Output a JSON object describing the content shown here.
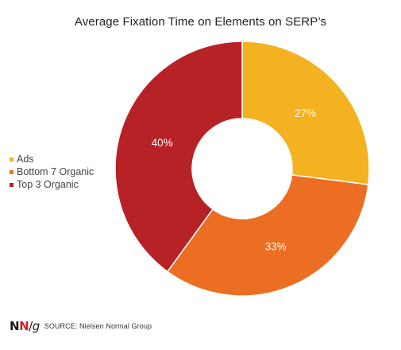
{
  "chart_data": {
    "type": "pie",
    "title": "Average Fixation Time on Elements on SERP’s",
    "categories": [
      "Ads",
      "Bottom 7 Organic",
      "Top 3 Organic"
    ],
    "values": [
      27,
      33,
      40
    ],
    "value_labels": [
      "27%",
      "33%",
      "40%"
    ],
    "colors": [
      "#f4b120",
      "#ec6e22",
      "#b72227"
    ],
    "donut": true,
    "legend_position": "left"
  },
  "legend": {
    "items": [
      {
        "label": "Ads",
        "color": "#f4b120"
      },
      {
        "label": "Bottom 7 Organic",
        "color": "#ec6e22"
      },
      {
        "label": "Top 3 Organic",
        "color": "#b72227"
      }
    ]
  },
  "footer": {
    "logo_n1": "N",
    "logo_n2": "N",
    "logo_slash": "/",
    "logo_g": "g",
    "source": "SOURCE: Nielsen Normal Group"
  }
}
